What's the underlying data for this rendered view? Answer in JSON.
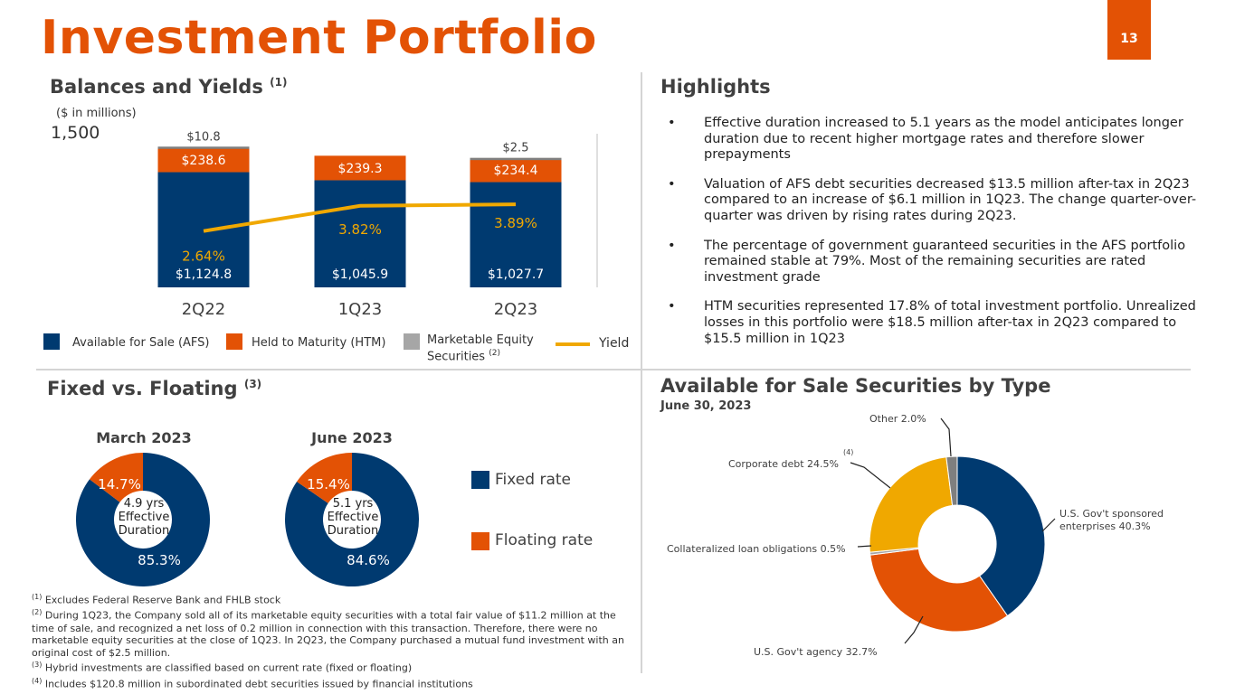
{
  "page": {
    "title": "Investment Portfolio",
    "page_number": "13"
  },
  "balances": {
    "title": "Balances and Yields",
    "title_sup": "(1)",
    "units": "($ in millions)",
    "y_top_label": "1,500",
    "legend": {
      "afs": "Available for Sale (AFS)",
      "htm": "Held to Maturity (HTM)",
      "equity_line1": "Marketable Equity",
      "equity_line2": "Securities",
      "equity_sup": "(2)",
      "yield": "Yield"
    }
  },
  "highlights": {
    "title": "Highlights",
    "bullets": [
      "Effective duration increased to 5.1 years as the model anticipates longer duration due to recent higher mortgage rates and therefore slower prepayments",
      "Valuation of AFS debt securities decreased $13.5 million after-tax in 2Q23 compared to an increase of $6.1 million in 1Q23.  The change quarter-over-quarter was driven by rising rates during 2Q23.",
      "The percentage of government guaranteed securities in the AFS portfolio remained stable at 79%. Most of the remaining securities are rated investment grade",
      "HTM securities represented 17.8% of total investment portfolio. Unrealized losses in this portfolio were $18.5 million after-tax in 2Q23 compared to $15.5 million in 1Q23"
    ]
  },
  "fixed_floating": {
    "title": "Fixed vs. Floating",
    "title_sup": "(3)",
    "legend_fixed": "Fixed rate",
    "legend_floating": "Floating rate",
    "march": {
      "title": "March 2023",
      "center_line1": "4.9 yrs",
      "center_line2": "Effective",
      "center_line3": "Duration"
    },
    "june": {
      "title": "June 2023",
      "center_line1": "5.1 yrs",
      "center_line2": "Effective",
      "center_line3": "Duration"
    }
  },
  "afs_type": {
    "title": "Available for Sale Securities by Type",
    "subtitle": "June 30, 2023",
    "corporate_sup": "(4)",
    "label_other": "Other 2.0%",
    "label_corporate": "Corporate debt 24.5%",
    "label_clo": "Collateralized loan obligations 0.5%",
    "label_agency": "U.S. Gov't agency  32.7%",
    "label_gse_line1": "U.S. Gov't sponsored",
    "label_gse_line2": "enterprises  40.3%"
  },
  "footnotes": [
    {
      "sup": "(1)",
      "text": "Excludes Federal Reserve Bank and FHLB stock"
    },
    {
      "sup": "(2)",
      "text": "During 1Q23, the Company sold all of its marketable equity securities with a total fair value of $11.2 million at the time of sale, and recognized a net loss of 0.2 million in connection with this transaction. Therefore, there were no marketable equity securities at the close of 1Q23. In 2Q23, the Company purchased a mutual fund investment with an original cost of $2.5 million."
    },
    {
      "sup": "(3)",
      "text": "Hybrid investments are classified based on current rate (fixed or floating)"
    },
    {
      "sup": "(4)",
      "text": "Includes $120.8 million in subordinated debt securities issued by financial institutions"
    }
  ],
  "colors": {
    "orange": "#E35205",
    "navy": "#003A70",
    "gray": "#7F7F7F",
    "yellow": "#F0A800",
    "light_gray": "#A6A6A6"
  },
  "chart_data": [
    {
      "type": "bar",
      "stacked": true,
      "categories": [
        "2Q22",
        "1Q23",
        "2Q23"
      ],
      "ylim": [
        0,
        1500
      ],
      "series": [
        {
          "name": "Available for Sale (AFS)",
          "values": [
            1124.8,
            1045.9,
            1027.7
          ],
          "labels": [
            "$1,124.8",
            "$1,045.9",
            "$1,027.7"
          ]
        },
        {
          "name": "Held to Maturity (HTM)",
          "values": [
            238.6,
            239.3,
            234.4
          ],
          "labels": [
            "$238.6",
            "$239.3",
            "$234.4"
          ]
        },
        {
          "name": "Marketable Equity Securities",
          "values": [
            10.8,
            0,
            2.5
          ],
          "labels": [
            "$10.8",
            "",
            "$2.5"
          ]
        }
      ],
      "line_series": {
        "name": "Yield",
        "values": [
          2.64,
          3.82,
          3.89
        ],
        "labels": [
          "2.64%",
          "3.82%",
          "3.89%"
        ],
        "ylim": [
          0,
          7.2
        ]
      }
    },
    {
      "type": "pie",
      "title": "March 2023",
      "donut": true,
      "slices": [
        {
          "name": "Fixed rate",
          "value": 85.3,
          "label": "85.3%"
        },
        {
          "name": "Floating rate",
          "value": 14.7,
          "label": "14.7%"
        }
      ]
    },
    {
      "type": "pie",
      "title": "June 2023",
      "donut": true,
      "slices": [
        {
          "name": "Fixed rate",
          "value": 84.6,
          "label": "84.6%"
        },
        {
          "name": "Floating rate",
          "value": 15.4,
          "label": "15.4%"
        }
      ]
    },
    {
      "type": "pie",
      "title": "Available for Sale Securities by Type",
      "donut": true,
      "slices": [
        {
          "name": "U.S. Gov't sponsored enterprises",
          "value": 40.3
        },
        {
          "name": "U.S. Gov't agency",
          "value": 32.7
        },
        {
          "name": "Collateralized loan obligations",
          "value": 0.5
        },
        {
          "name": "Corporate debt",
          "value": 24.5
        },
        {
          "name": "Other",
          "value": 2.0
        }
      ]
    }
  ]
}
